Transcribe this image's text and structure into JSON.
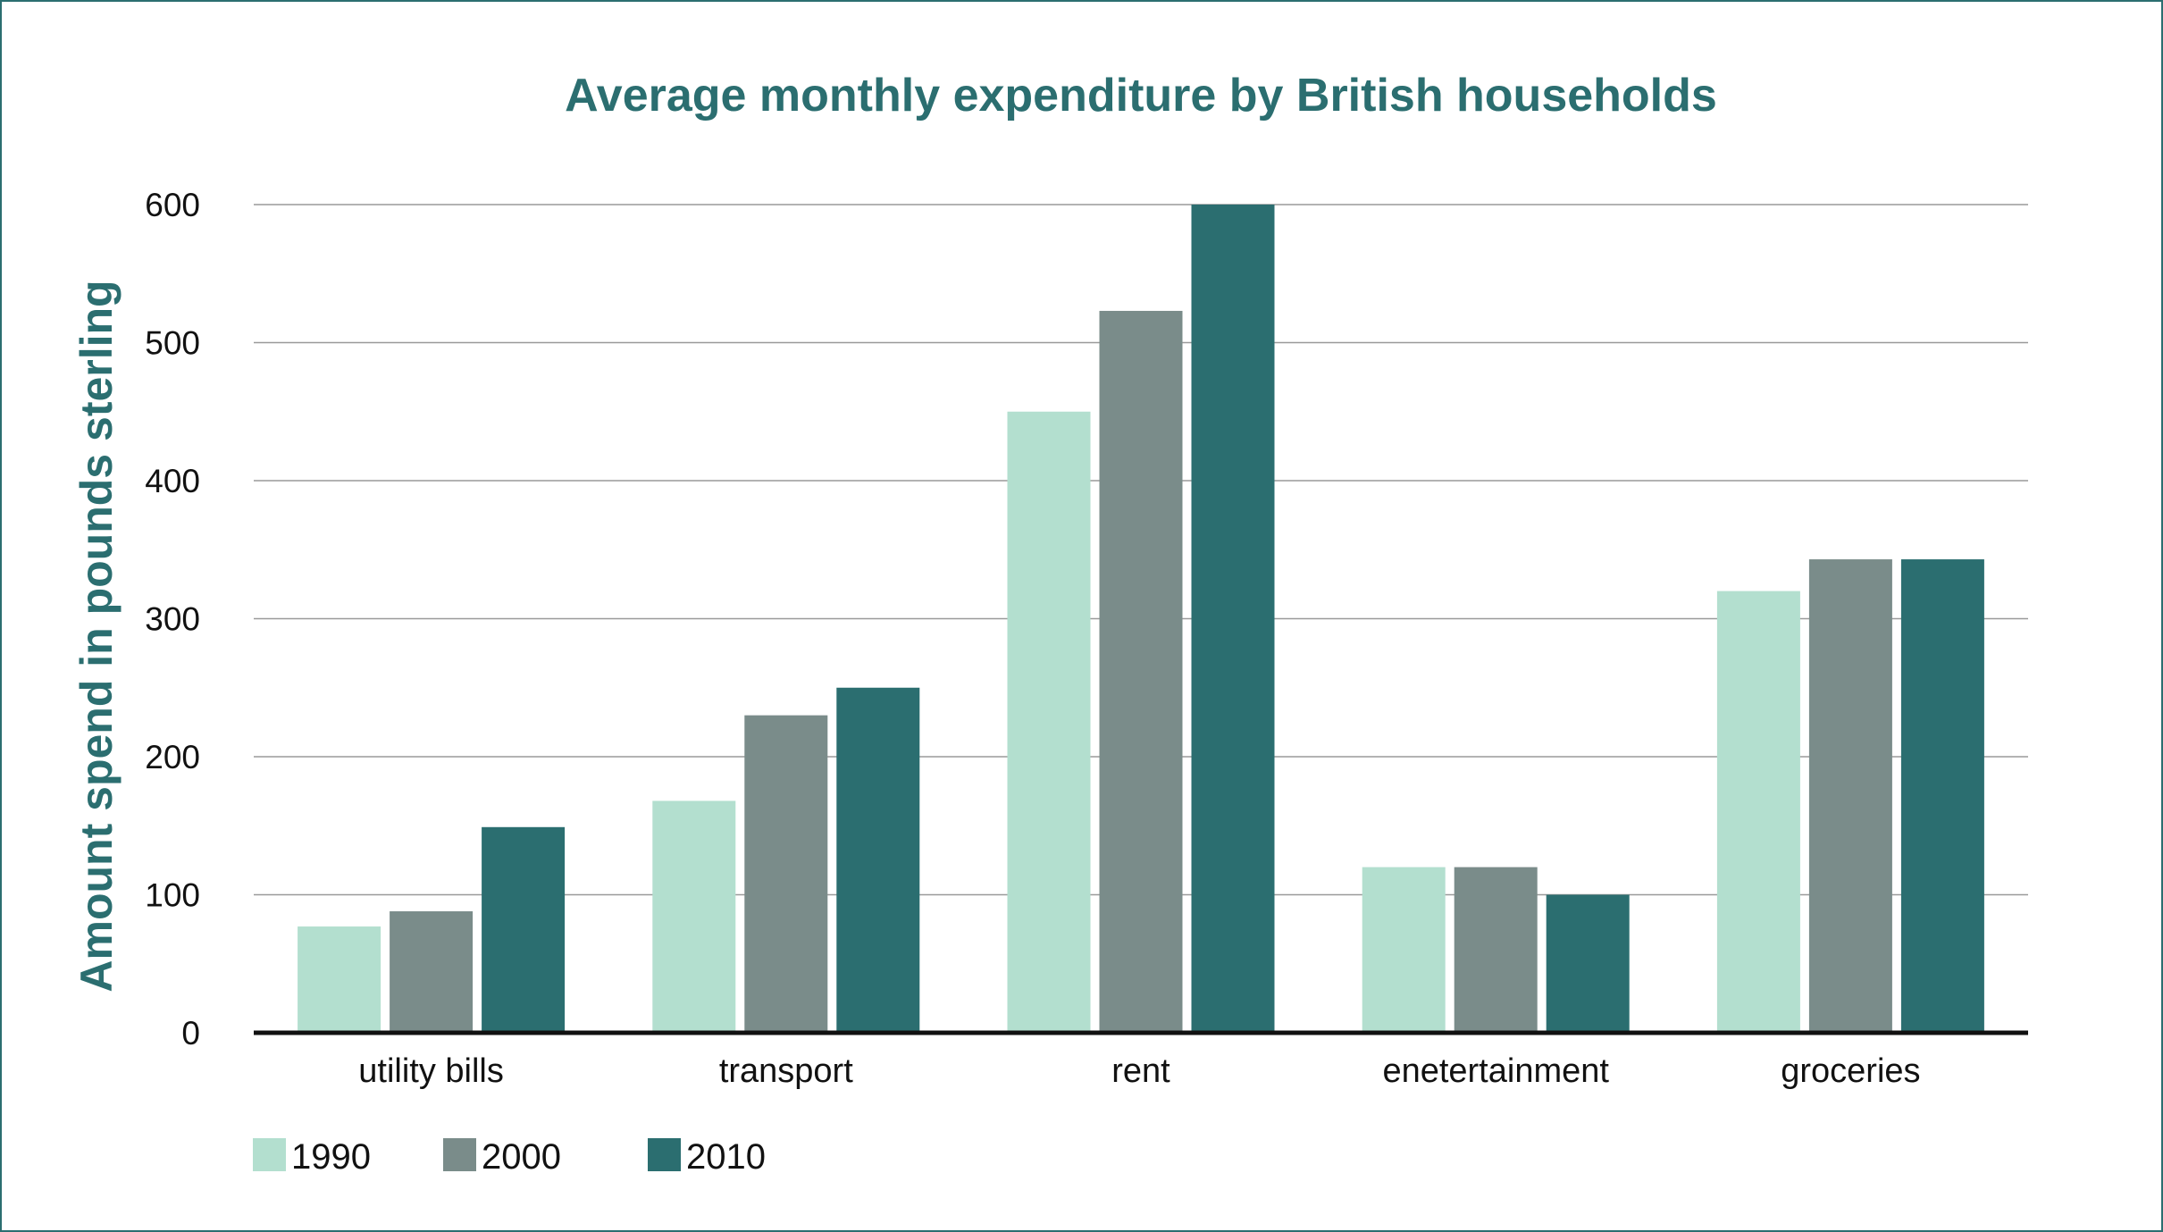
{
  "chart_data": {
    "type": "bar",
    "title": "Average monthly expenditure by British households",
    "xlabel": "",
    "ylabel": "Amount spend in pounds sterling",
    "categories": [
      "utility bills",
      "transport",
      "rent",
      "enetertainment",
      "groceries"
    ],
    "series": [
      {
        "name": "1990",
        "color": "#b3dfcf",
        "values": [
          77,
          168,
          450,
          120,
          320
        ]
      },
      {
        "name": "2000",
        "color": "#7a8c8a",
        "values": [
          88,
          230,
          523,
          120,
          343
        ]
      },
      {
        "name": "2010",
        "color": "#2b6e70",
        "values": [
          149,
          250,
          600,
          100,
          343
        ]
      }
    ],
    "ylim": [
      0,
      600
    ],
    "yticks": [
      0,
      100,
      200,
      300,
      400,
      500,
      600
    ],
    "grid": true,
    "legend_position": "bottom-left"
  }
}
